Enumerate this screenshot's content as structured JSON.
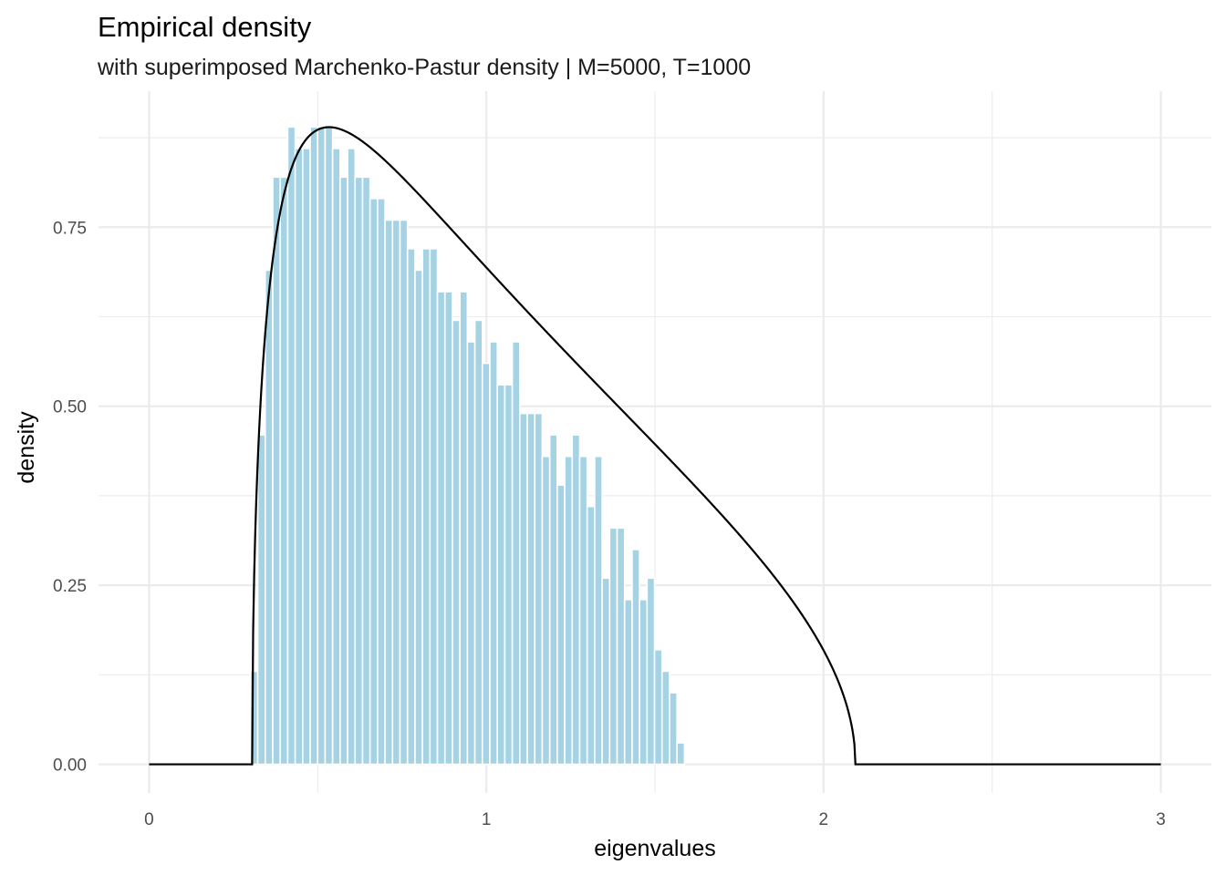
{
  "chart_data": {
    "type": "bar",
    "title": "Empirical density",
    "subtitle": "with superimposed Marchenko-Pastur density | M=5000, T=1000",
    "xlabel": "eigenvalues",
    "ylabel": "density",
    "xlim": [
      -0.15,
      3.15
    ],
    "ylim": [
      -0.04,
      0.94
    ],
    "x_ticks": [
      0,
      1,
      2,
      3
    ],
    "x_tick_labels": [
      "0",
      "1",
      "2",
      "3"
    ],
    "y_ticks": [
      0,
      0.25,
      0.5,
      0.75
    ],
    "y_tick_labels": [
      "0.00",
      "0.25",
      "0.50",
      "0.75"
    ],
    "grid": true,
    "bar_color": "#a6d3e3",
    "bar_outline_color": "#ffffff",
    "line_color": "#000000",
    "bin_width": 0.0222,
    "bins_start": 0.3,
    "series": [
      {
        "type": "bar",
        "values": [
          0.13,
          0.46,
          0.69,
          0.82,
          0.82,
          0.89,
          0.86,
          0.86,
          0.89,
          0.89,
          0.89,
          0.86,
          0.82,
          0.86,
          0.82,
          0.82,
          0.79,
          0.79,
          0.76,
          0.76,
          0.76,
          0.72,
          0.69,
          0.72,
          0.72,
          0.66,
          0.66,
          0.62,
          0.66,
          0.59,
          0.62,
          0.56,
          0.59,
          0.53,
          0.53,
          0.59,
          0.49,
          0.49,
          0.49,
          0.43,
          0.46,
          0.39,
          0.43,
          0.46,
          0.43,
          0.36,
          0.43,
          0.26,
          0.33,
          0.33,
          0.23,
          0.3,
          0.23,
          0.26,
          0.16,
          0.13,
          0.1,
          0.03
        ]
      },
      {
        "type": "line",
        "curve": "Marchenko-Pastur density",
        "params": {
          "q": 0.2,
          "sigma2": 1
        },
        "x_range": [
          0,
          3
        ]
      }
    ]
  }
}
